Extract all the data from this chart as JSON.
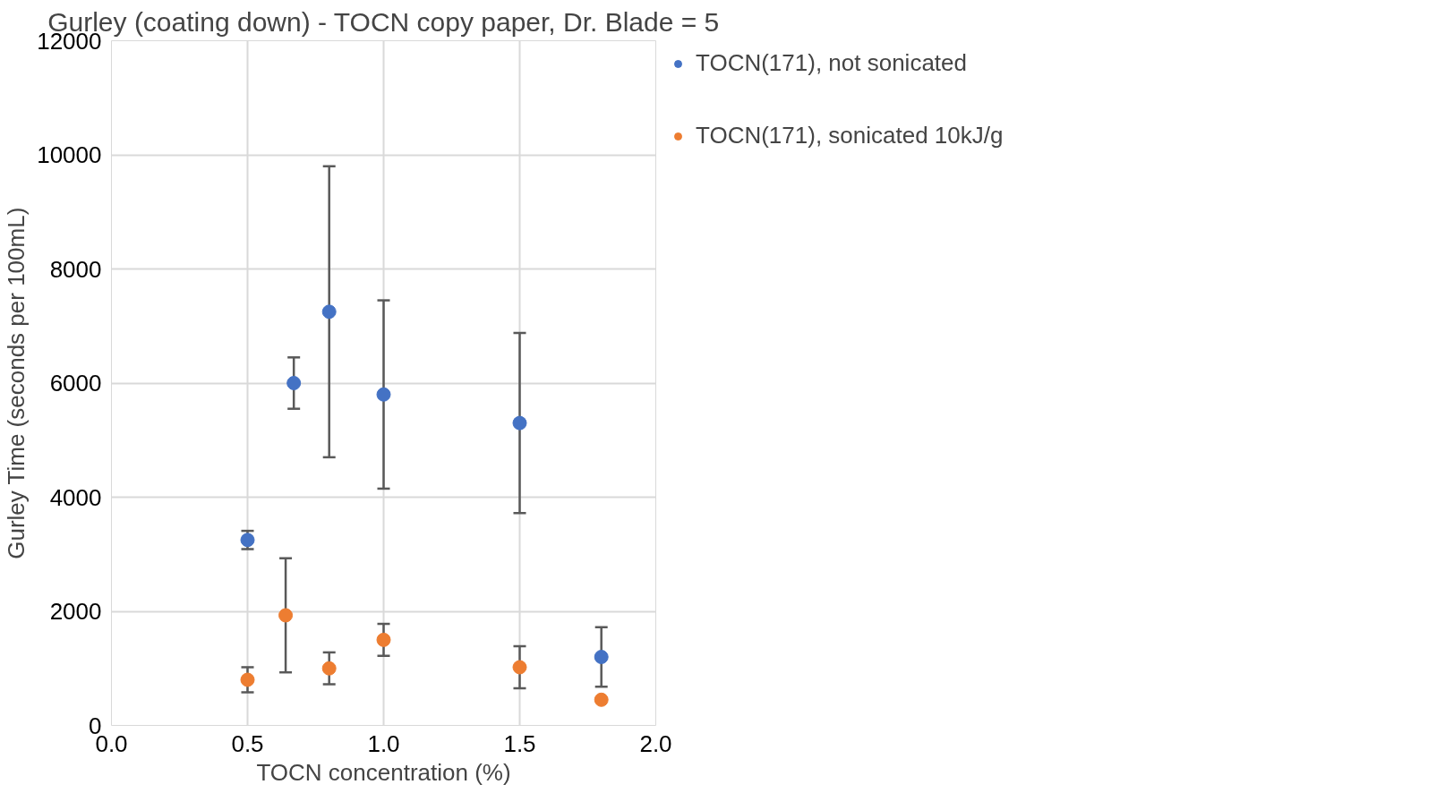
{
  "chart_data": {
    "type": "scatter",
    "title": "Gurley (coating down) - TOCN copy paper, Dr. Blade = 5",
    "xlabel": "TOCN concentration (%)",
    "ylabel": "Gurley Time (seconds per 100mL)",
    "xlim": [
      0,
      2
    ],
    "xticks": [
      {
        "value": 0,
        "label": "0.0"
      },
      0.5,
      {
        "value": 1,
        "label": "1.0"
      },
      1.5,
      {
        "value": 2,
        "label": "2.0"
      }
    ],
    "ylim": [
      0,
      12000
    ],
    "yticks": [
      0,
      2000,
      4000,
      6000,
      8000,
      10000,
      12000
    ],
    "grid": true,
    "legend": "top right",
    "marker": "circle",
    "series": [
      {
        "name": "TOCN(171), not sonicated",
        "color": "#4472c4",
        "x": [
          0.5,
          0.67,
          0.8,
          1.0,
          1.5,
          1.8
        ],
        "values": [
          3250,
          6000,
          7250,
          5800,
          5300,
          1200
        ],
        "errors": [
          160,
          450,
          2550,
          1650,
          1580,
          520
        ]
      },
      {
        "name": "TOCN(171), sonicated 10kJ/g",
        "color": "#ed7d31",
        "x": [
          0.5,
          0.64,
          0.8,
          1.0,
          1.5,
          1.8
        ],
        "values": [
          800,
          1930,
          1000,
          1500,
          1020,
          450
        ],
        "errors": [
          220,
          1000,
          280,
          280,
          370,
          null
        ]
      }
    ]
  }
}
